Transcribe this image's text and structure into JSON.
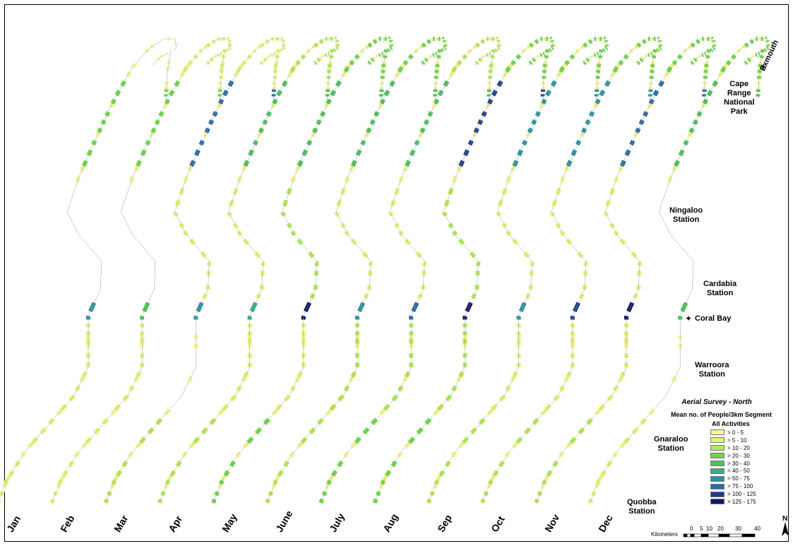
{
  "months": [
    "Jan",
    "Feb",
    "Mar",
    "Apr",
    "May",
    "June",
    "July",
    "Aug",
    "Sep",
    "Oct",
    "Nov",
    "Dec"
  ],
  "places": [
    {
      "id": "exmouth",
      "label": "Exmouth"
    },
    {
      "id": "cape-range",
      "label": "Cape\nRange\nNational\nPark"
    },
    {
      "id": "ningaloo",
      "label": "Ningaloo\nStation"
    },
    {
      "id": "cardabia",
      "label": "Cardabia\nStation"
    },
    {
      "id": "coral-bay",
      "label": "Coral Bay"
    },
    {
      "id": "warroora",
      "label": "Warroora\nStation"
    },
    {
      "id": "gnaraloo",
      "label": "Gnaraloo\nStation"
    },
    {
      "id": "quobba",
      "label": "Quobba\nStation"
    }
  ],
  "legend": {
    "title": "Aerial Survey - North",
    "subtitle": "Mean no. of People/3km Segment",
    "group": "All Activities",
    "classes": [
      {
        "label": "> 0 - 5",
        "color": "#f6f59a"
      },
      {
        "label": "> 5 - 10",
        "color": "#e3f27a"
      },
      {
        "label": "> 10 - 20",
        "color": "#b4e85c"
      },
      {
        "label": "> 20 - 30",
        "color": "#6fd64a"
      },
      {
        "label": "> 30 - 40",
        "color": "#4cc25a"
      },
      {
        "label": "> 40 - 50",
        "color": "#3aad7a"
      },
      {
        "label": "> 50 - 75",
        "color": "#2c93a0"
      },
      {
        "label": "> 75 - 100",
        "color": "#2a6aa6"
      },
      {
        "label": "> 100 - 125",
        "color": "#1f3d8c"
      },
      {
        "label": "> 125 - 175",
        "color": "#12165e"
      }
    ]
  },
  "scale": {
    "title": "Kilometers",
    "ticks": [
      "0",
      "5",
      "10",
      "20",
      "30",
      "40"
    ]
  },
  "north_label": "N",
  "empty_color": "#ffffff",
  "segment_classes": {
    "Jan": {
      "top": 0,
      "cape": 3,
      "mid": 0,
      "coral": 6,
      "south": 1,
      "far": 1
    },
    "Feb": {
      "top": 1,
      "cape": 3,
      "mid": 0,
      "coral": 4,
      "south": 1,
      "far": 1
    },
    "Mar": {
      "top": 1,
      "cape": 7,
      "mid": 1,
      "coral": 6,
      "south": 0,
      "far": 2
    },
    "Apr": {
      "top": 2,
      "cape": 4,
      "mid": 1,
      "coral": 5,
      "south": 1,
      "far": 2
    },
    "May": {
      "top": 3,
      "cape": 4,
      "mid": 2,
      "coral": 9,
      "south": 1,
      "far": 3
    },
    "June": {
      "top": 3,
      "cape": 4,
      "mid": 1,
      "coral": 6,
      "south": 2,
      "far": 2
    },
    "July": {
      "top": 2,
      "cape": 4,
      "mid": 1,
      "coral": 7,
      "south": 2,
      "far": 3
    },
    "Aug": {
      "top": 3,
      "cape": 8,
      "mid": 2,
      "coral": 9,
      "south": 2,
      "far": 3
    },
    "Sep": {
      "top": 3,
      "cape": 6,
      "mid": 1,
      "coral": 6,
      "south": 1,
      "far": 2
    },
    "Oct": {
      "top": 3,
      "cape": 6,
      "mid": 1,
      "coral": 8,
      "south": 1,
      "far": 2
    },
    "Nov": {
      "top": 3,
      "cape": 7,
      "mid": 1,
      "coral": 9,
      "south": 1,
      "far": 2
    },
    "Dec": {
      "top": 3,
      "cape": 4,
      "mid": 0,
      "coral": 4,
      "south": 0,
      "far": 1
    }
  }
}
